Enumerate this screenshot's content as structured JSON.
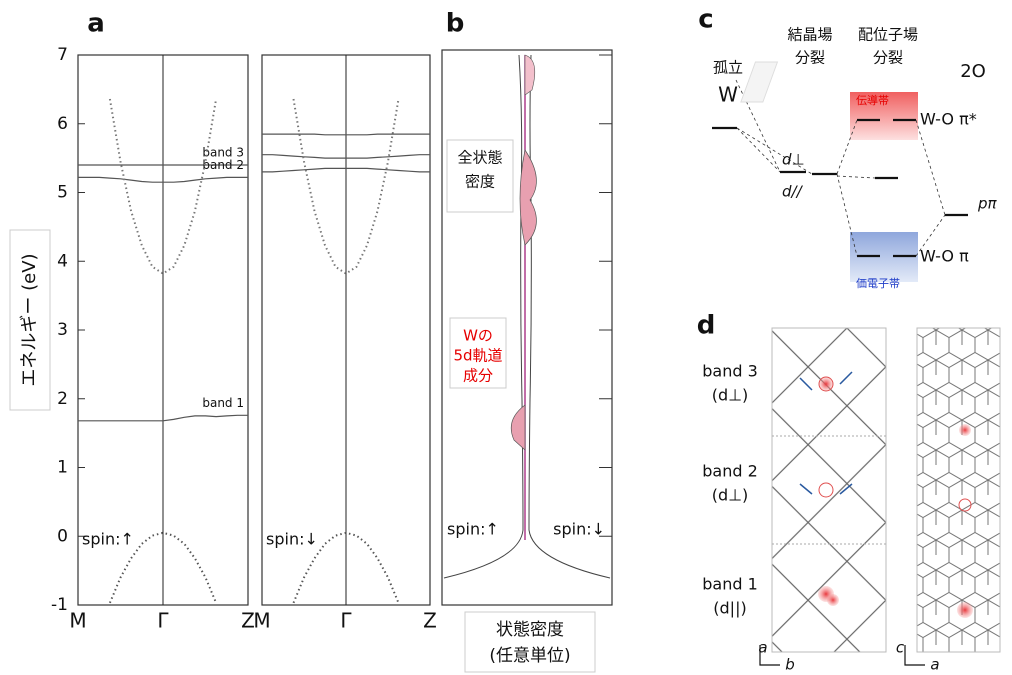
{
  "panel_labels": [
    "a",
    "b",
    "c",
    "d"
  ],
  "chart_data": [
    {
      "type": "line",
      "y_label": "エネルギー (eV)",
      "annotation": "spin:↑",
      "x": [
        0,
        0.0625,
        0.125,
        0.1875,
        0.25,
        0.3125,
        0.375,
        0.4375,
        0.5,
        0.5625,
        0.625,
        0.6875,
        0.75,
        0.8125,
        0.875,
        0.9375,
        1
      ],
      "xlim": [
        0,
        1
      ],
      "xticks": [
        {
          "value": 0,
          "label": "M"
        },
        {
          "value": 0.5,
          "label": "Γ"
        },
        {
          "value": 1,
          "label": "Z"
        }
      ],
      "ylim": [
        -1,
        7
      ],
      "yticks": [
        -1,
        0,
        1,
        2,
        3,
        4,
        5,
        6,
        7
      ],
      "series": [
        {
          "name": "band 3",
          "color": "#555555",
          "values": [
            5.4,
            5.4,
            5.4,
            5.4,
            5.4,
            5.4,
            5.4,
            5.4,
            5.4,
            5.4,
            5.4,
            5.4,
            5.4,
            5.4,
            5.4,
            5.4,
            5.4
          ]
        },
        {
          "name": "band 2",
          "color": "#555555",
          "values": [
            5.22,
            5.22,
            5.22,
            5.21,
            5.2,
            5.18,
            5.16,
            5.15,
            5.15,
            5.15,
            5.16,
            5.18,
            5.2,
            5.21,
            5.22,
            5.22,
            5.22
          ]
        },
        {
          "name": "band 1",
          "color": "#555555",
          "values": [
            1.68,
            1.68,
            1.68,
            1.68,
            1.68,
            1.68,
            1.68,
            1.68,
            1.68,
            1.7,
            1.73,
            1.75,
            1.75,
            1.74,
            1.75,
            1.76,
            1.76
          ]
        },
        {
          "color": "#777777",
          "line_style": "dotted",
          "values": [
            null,
            null,
            null,
            6.36,
            5.45,
            4.73,
            4.23,
            3.92,
            3.82,
            3.92,
            4.23,
            4.73,
            5.45,
            6.36,
            null,
            null,
            null
          ]
        },
        {
          "color": "#555555",
          "line_style": "dotted",
          "values": [
            null,
            null,
            null,
            -0.97,
            -0.6,
            -0.32,
            -0.11,
            0.01,
            0.05,
            0.01,
            -0.11,
            -0.32,
            -0.6,
            -0.97,
            null,
            null,
            null
          ]
        }
      ]
    },
    {
      "type": "line",
      "annotation": "spin:↓",
      "x": [
        0,
        0.0625,
        0.125,
        0.1875,
        0.25,
        0.3125,
        0.375,
        0.4375,
        0.5,
        0.5625,
        0.625,
        0.6875,
        0.75,
        0.8125,
        0.875,
        0.9375,
        1
      ],
      "xlim": [
        0,
        1
      ],
      "xticks": [
        {
          "value": 0,
          "label": "M"
        },
        {
          "value": 0.5,
          "label": "Γ"
        },
        {
          "value": 1,
          "label": "Z"
        }
      ],
      "ylim": [
        -1,
        7
      ],
      "series": [
        {
          "color": "#555555",
          "values": [
            5.85,
            5.85,
            5.85,
            5.85,
            5.85,
            5.85,
            5.84,
            5.84,
            5.84,
            5.84,
            5.84,
            5.85,
            5.85,
            5.85,
            5.85,
            5.85,
            5.85
          ]
        },
        {
          "color": "#555555",
          "values": [
            5.55,
            5.55,
            5.54,
            5.53,
            5.52,
            5.51,
            5.5,
            5.5,
            5.5,
            5.5,
            5.5,
            5.51,
            5.52,
            5.53,
            5.54,
            5.55,
            5.55
          ]
        },
        {
          "color": "#555555",
          "values": [
            5.3,
            5.3,
            5.31,
            5.32,
            5.33,
            5.34,
            5.35,
            5.35,
            5.35,
            5.35,
            5.35,
            5.34,
            5.33,
            5.32,
            5.31,
            5.3,
            5.3
          ]
        },
        {
          "color": "#777777",
          "line_style": "dotted",
          "values": [
            null,
            null,
            null,
            6.36,
            5.45,
            4.73,
            4.23,
            3.92,
            3.82,
            3.92,
            4.23,
            4.73,
            5.45,
            6.36,
            null,
            null,
            null
          ]
        },
        {
          "color": "#555555",
          "line_style": "dotted",
          "values": [
            null,
            null,
            null,
            -0.97,
            -0.6,
            -0.32,
            -0.11,
            0.01,
            0.05,
            0.01,
            -0.11,
            -0.32,
            -0.6,
            -0.97,
            null,
            null,
            null
          ]
        }
      ]
    }
  ],
  "panel_b": {
    "total_dos": [
      "全状態",
      "密度"
    ],
    "w5d": [
      "Wの",
      "5d軌道",
      "成分"
    ],
    "spin_up": "spin:↑",
    "spin_down": "spin:↓",
    "x_label": [
      "状態密度",
      "(任意単位)"
    ]
  },
  "panel_c": {
    "isolated": [
      "孤立",
      "W"
    ],
    "crystal_field": [
      "結晶場",
      "分裂"
    ],
    "ligand_field": [
      "配位子場",
      "分裂"
    ],
    "oxygen": "2O",
    "conduction_band": "伝導帯",
    "pi_star": "W-O π*",
    "valence_band": "価電子帯",
    "pi": "W-O π",
    "d_perp": "d⊥",
    "d_par": "d//",
    "p_pi": "pπ"
  },
  "panel_d": {
    "rows": [
      {
        "band": "band 3",
        "orbital": "(d⊥)"
      },
      {
        "band": "band 2",
        "orbital": "(d⊥)"
      },
      {
        "band": "band 1",
        "orbital": "(d||)"
      }
    ],
    "axes_left": [
      "a",
      "b"
    ],
    "axes_right": [
      "c",
      "a"
    ]
  }
}
